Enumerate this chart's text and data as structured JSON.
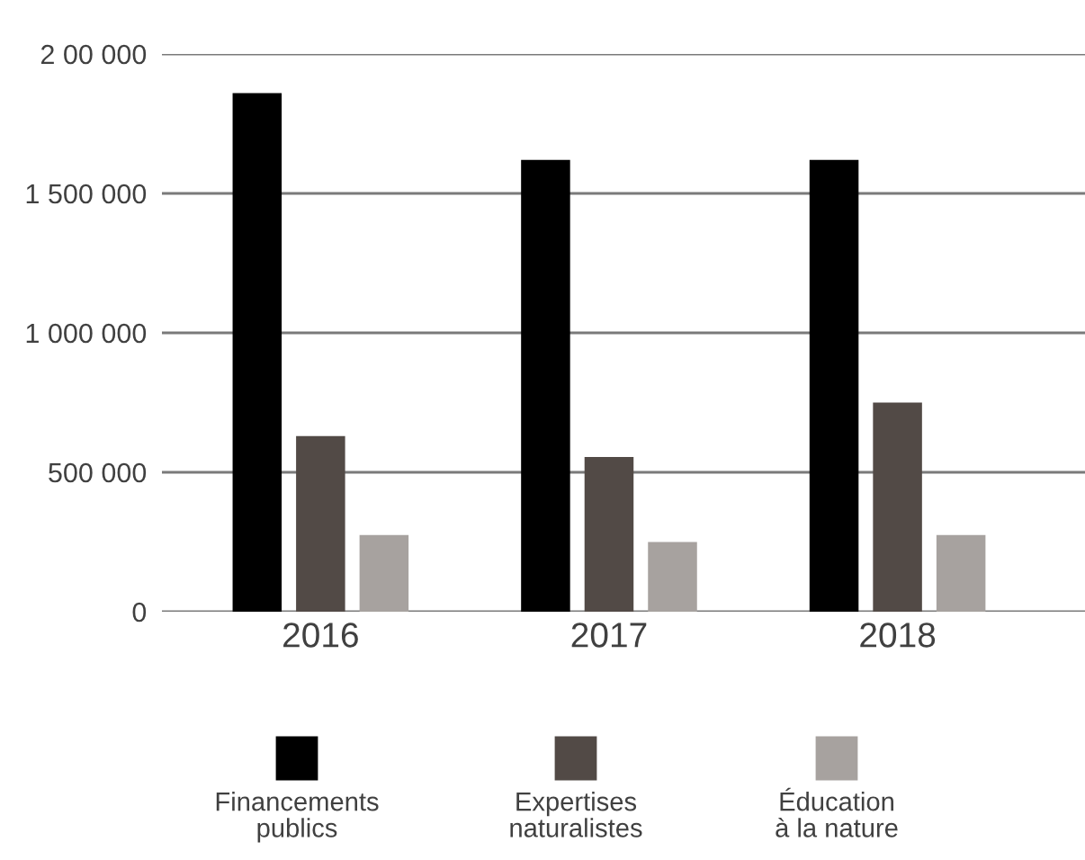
{
  "chart_data": {
    "type": "bar",
    "categories": [
      "2016",
      "2017",
      "2018"
    ],
    "series": [
      {
        "name": "Financements\npublics",
        "color": "#000000",
        "values": [
          1860000,
          1620000,
          1620000
        ]
      },
      {
        "name": "Expertises\nnaturalistes",
        "color": "#524a46",
        "values": [
          630000,
          555000,
          750000
        ]
      },
      {
        "name": "Éducation\nà la nature",
        "color": "#a7a29f",
        "values": [
          275000,
          250000,
          275000
        ]
      }
    ],
    "ylim": [
      0,
      2000000
    ],
    "yticks": [
      0,
      {
        "value": 500000,
        "label": "500 000"
      },
      {
        "value": 1000000,
        "label": "1 000 000"
      },
      {
        "value": 1500000,
        "label": "1 500 000"
      },
      {
        "value": 2000000,
        "label": "2 00 000"
      }
    ],
    "grid": "y",
    "legend": "bottom"
  }
}
